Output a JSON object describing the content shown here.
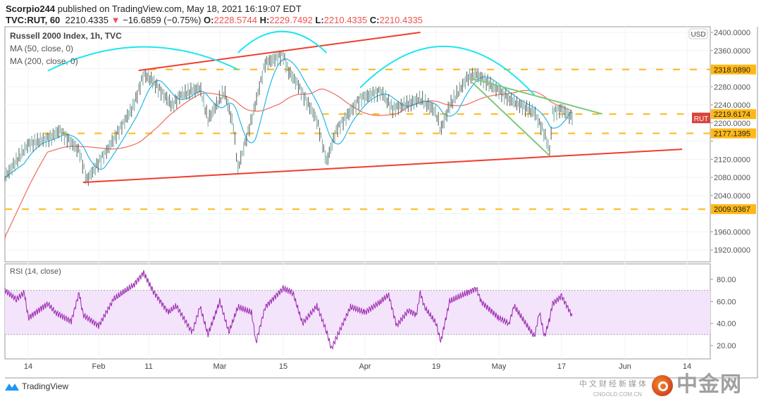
{
  "header": {
    "author": "Scorpio244",
    "published": "published on TradingView.com, May 18, 2021 16:19:07 EDT",
    "symbol": "TVC:RUT, 60",
    "last": "2210.4335",
    "change": "−16.6859 (−0.75%)",
    "o_label": "O:",
    "o": "2228.5744",
    "h_label": "H:",
    "h": "2229.7492",
    "l_label": "L:",
    "l": "2210.4335",
    "c_label": "C:",
    "c": "2210.4335"
  },
  "legend": {
    "title": "Russell 2000 Index, 1h, TVC",
    "ma50": "MA (50, close, 0)",
    "ma200": "MA (200, close, 0)",
    "rsi": "RSI (14, close)"
  },
  "price_axis": {
    "currency": "USD",
    "symbol_tag": "RUT"
  },
  "footer": {
    "brand": "TradingView"
  },
  "watermark": {
    "logo": "中金网",
    "domain": "CNGOLD.COM.CN",
    "tagline": "中文财经新媒体"
  },
  "colors": {
    "ma50": "#26b7e6",
    "ma200": "#ef6b5b",
    "rsi": "#9c27b0",
    "trend": "#f23c2e",
    "arc": "#1de6f0",
    "wedge": "#7cc97a",
    "level": "#ffb915",
    "rsi_band": "#f3e4fb"
  },
  "chart_data": [
    {
      "type": "line",
      "title": "Russell 2000 Index, 1h, TVC",
      "ylim": [
        1900,
        2410
      ],
      "y_ticks": [
        2400,
        2360,
        2320,
        2280,
        2240,
        2200,
        2160,
        2120,
        2080,
        2040,
        2000,
        1960,
        1920
      ],
      "x_ticks": [
        {
          "date": "2021-01-14",
          "label": "14"
        },
        {
          "date": "2021-02-01",
          "label": "Feb"
        },
        {
          "date": "2021-02-11",
          "label": "11"
        },
        {
          "date": "2021-03-01",
          "label": "Mar"
        },
        {
          "date": "2021-03-15",
          "label": "15"
        },
        {
          "date": "2021-04-01",
          "label": "Apr"
        },
        {
          "date": "2021-04-19",
          "label": "19"
        },
        {
          "date": "2021-05-03",
          "label": "May"
        },
        {
          "date": "2021-05-17",
          "label": "17"
        },
        {
          "date": "2021-06-01",
          "label": "Jun"
        },
        {
          "date": "2021-06-14",
          "label": "14"
        }
      ],
      "series": [
        {
          "name": "RUT",
          "points": [
            [
              "2021-01-08",
              2080
            ],
            [
              "2021-01-14",
              2153
            ],
            [
              "2021-01-20",
              2169
            ],
            [
              "2021-01-22",
              2184
            ],
            [
              "2021-01-27",
              2138
            ],
            [
              "2021-01-29",
              2075
            ],
            [
              "2021-02-03",
              2145
            ],
            [
              "2021-02-08",
              2238
            ],
            [
              "2021-02-10",
              2308
            ],
            [
              "2021-02-12",
              2293
            ],
            [
              "2021-02-17",
              2238
            ],
            [
              "2021-02-19",
              2262
            ],
            [
              "2021-02-24",
              2277
            ],
            [
              "2021-02-26",
              2207
            ],
            [
              "2021-03-02",
              2270
            ],
            [
              "2021-03-04",
              2192
            ],
            [
              "2021-03-05",
              2099
            ],
            [
              "2021-03-08",
              2207
            ],
            [
              "2021-03-11",
              2332
            ],
            [
              "2021-03-15",
              2350
            ],
            [
              "2021-03-16",
              2316
            ],
            [
              "2021-03-18",
              2285
            ],
            [
              "2021-03-22",
              2207
            ],
            [
              "2021-03-24",
              2114
            ],
            [
              "2021-03-26",
              2184
            ],
            [
              "2021-03-31",
              2254
            ],
            [
              "2021-04-05",
              2270
            ],
            [
              "2021-04-08",
              2231
            ],
            [
              "2021-04-13",
              2246
            ],
            [
              "2021-04-15",
              2254
            ],
            [
              "2021-04-19",
              2223
            ],
            [
              "2021-04-20",
              2184
            ],
            [
              "2021-04-22",
              2238
            ],
            [
              "2021-04-26",
              2300
            ],
            [
              "2021-04-28",
              2308
            ],
            [
              "2021-05-03",
              2270
            ],
            [
              "2021-05-06",
              2246
            ],
            [
              "2021-05-10",
              2223
            ],
            [
              "2021-05-12",
              2176
            ],
            [
              "2021-05-13",
              2138
            ],
            [
              "2021-05-14",
              2223
            ],
            [
              "2021-05-17",
              2231
            ],
            [
              "2021-05-18",
              2210
            ]
          ]
        }
      ],
      "levels": [
        {
          "value": 2318.089,
          "label": "2318.0890",
          "from": "2021-02-11"
        },
        {
          "value": 2219.6174,
          "label": "2219.6174",
          "from": "2021-03-23"
        },
        {
          "value": 2177.1395,
          "label": "2177.1395",
          "from": "2021-01-18"
        },
        {
          "value": 2009.9367,
          "label": "2009.9367",
          "from": "2021-01-08"
        }
      ],
      "trendlines": [
        {
          "from": [
            "2021-02-09",
            2316
          ],
          "to": [
            "2021-04-15",
            2400
          ],
          "kind": "trend"
        },
        {
          "from": [
            "2021-01-28",
            2069
          ],
          "to": [
            "2021-06-13",
            2142
          ],
          "kind": "trend"
        },
        {
          "from": [
            "2021-04-27",
            2298
          ],
          "to": [
            "2021-05-26",
            2220
          ],
          "kind": "wedge"
        },
        {
          "from": [
            "2021-04-27",
            2290
          ],
          "to": [
            "2021-05-13",
            2128
          ],
          "kind": "wedge"
        }
      ],
      "arcs": [
        {
          "from": [
            "2021-01-19",
            2315
          ],
          "peak": 2368,
          "to": [
            "2021-03-05",
            2318
          ]
        },
        {
          "from": [
            "2021-03-05",
            2355
          ],
          "peak": 2402,
          "to": [
            "2021-03-24",
            2355
          ]
        },
        {
          "from": [
            "2021-03-31",
            2278
          ],
          "peak": 2369,
          "to": [
            "2021-05-10",
            2262
          ]
        }
      ]
    },
    {
      "type": "line",
      "title": "RSI (14, close)",
      "ylim": [
        12,
        95
      ],
      "y_ticks": [
        80,
        60,
        40,
        20
      ],
      "band": [
        30,
        70
      ],
      "series": [
        {
          "name": "RSI",
          "points": [
            [
              "2021-01-08",
              70
            ],
            [
              "2021-01-11",
              62
            ],
            [
              "2021-01-13",
              68
            ],
            [
              "2021-01-14",
              45
            ],
            [
              "2021-01-19",
              58
            ],
            [
              "2021-01-21",
              50
            ],
            [
              "2021-01-25",
              42
            ],
            [
              "2021-01-27",
              68
            ],
            [
              "2021-01-28",
              48
            ],
            [
              "2021-02-01",
              38
            ],
            [
              "2021-02-04",
              62
            ],
            [
              "2021-02-08",
              75
            ],
            [
              "2021-02-10",
              86
            ],
            [
              "2021-02-12",
              70
            ],
            [
              "2021-02-16",
              50
            ],
            [
              "2021-02-18",
              56
            ],
            [
              "2021-02-22",
              32
            ],
            [
              "2021-02-24",
              55
            ],
            [
              "2021-02-26",
              30
            ],
            [
              "2021-03-01",
              60
            ],
            [
              "2021-03-03",
              32
            ],
            [
              "2021-03-05",
              55
            ],
            [
              "2021-03-08",
              50
            ],
            [
              "2021-03-09",
              23
            ],
            [
              "2021-03-11",
              55
            ],
            [
              "2021-03-15",
              72
            ],
            [
              "2021-03-17",
              68
            ],
            [
              "2021-03-19",
              40
            ],
            [
              "2021-03-22",
              56
            ],
            [
              "2021-03-24",
              33
            ],
            [
              "2021-03-25",
              17
            ],
            [
              "2021-03-29",
              55
            ],
            [
              "2021-04-01",
              50
            ],
            [
              "2021-04-05",
              60
            ],
            [
              "2021-04-07",
              66
            ],
            [
              "2021-04-09",
              38
            ],
            [
              "2021-04-12",
              52
            ],
            [
              "2021-04-14",
              48
            ],
            [
              "2021-04-15",
              68
            ],
            [
              "2021-04-16",
              55
            ],
            [
              "2021-04-19",
              40
            ],
            [
              "2021-04-20",
              23
            ],
            [
              "2021-04-22",
              60
            ],
            [
              "2021-04-26",
              68
            ],
            [
              "2021-04-28",
              72
            ],
            [
              "2021-04-29",
              60
            ],
            [
              "2021-05-03",
              45
            ],
            [
              "2021-05-05",
              40
            ],
            [
              "2021-05-06",
              56
            ],
            [
              "2021-05-10",
              28
            ],
            [
              "2021-05-11",
              50
            ],
            [
              "2021-05-12",
              28
            ],
            [
              "2021-05-13",
              44
            ],
            [
              "2021-05-14",
              58
            ],
            [
              "2021-05-17",
              65
            ],
            [
              "2021-05-18",
              47
            ]
          ]
        }
      ]
    }
  ]
}
